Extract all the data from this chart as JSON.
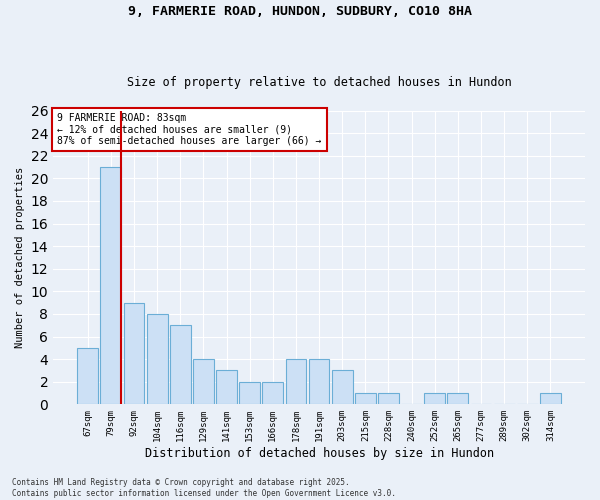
{
  "title1": "9, FARMERIE ROAD, HUNDON, SUDBURY, CO10 8HA",
  "title2": "Size of property relative to detached houses in Hundon",
  "xlabel": "Distribution of detached houses by size in Hundon",
  "ylabel": "Number of detached properties",
  "categories": [
    "67sqm",
    "79sqm",
    "92sqm",
    "104sqm",
    "116sqm",
    "129sqm",
    "141sqm",
    "153sqm",
    "166sqm",
    "178sqm",
    "191sqm",
    "203sqm",
    "215sqm",
    "228sqm",
    "240sqm",
    "252sqm",
    "265sqm",
    "277sqm",
    "289sqm",
    "302sqm",
    "314sqm"
  ],
  "values": [
    5,
    21,
    9,
    8,
    7,
    4,
    3,
    2,
    2,
    4,
    4,
    3,
    1,
    1,
    0,
    1,
    1,
    0,
    0,
    0,
    1
  ],
  "bar_color": "#cce0f5",
  "bar_edge_color": "#6baed6",
  "red_line_color": "#cc0000",
  "annotation_text": "9 FARMERIE ROAD: 83sqm\n← 12% of detached houses are smaller (9)\n87% of semi-detached houses are larger (66) →",
  "annotation_box_color": "#ffffff",
  "annotation_box_edge": "#cc0000",
  "ylim": [
    0,
    26
  ],
  "yticks": [
    0,
    2,
    4,
    6,
    8,
    10,
    12,
    14,
    16,
    18,
    20,
    22,
    24,
    26
  ],
  "footer1": "Contains HM Land Registry data © Crown copyright and database right 2025.",
  "footer2": "Contains public sector information licensed under the Open Government Licence v3.0.",
  "bg_color": "#eaf0f8",
  "plot_bg_color": "#eaf0f8",
  "grid_color": "#ffffff"
}
